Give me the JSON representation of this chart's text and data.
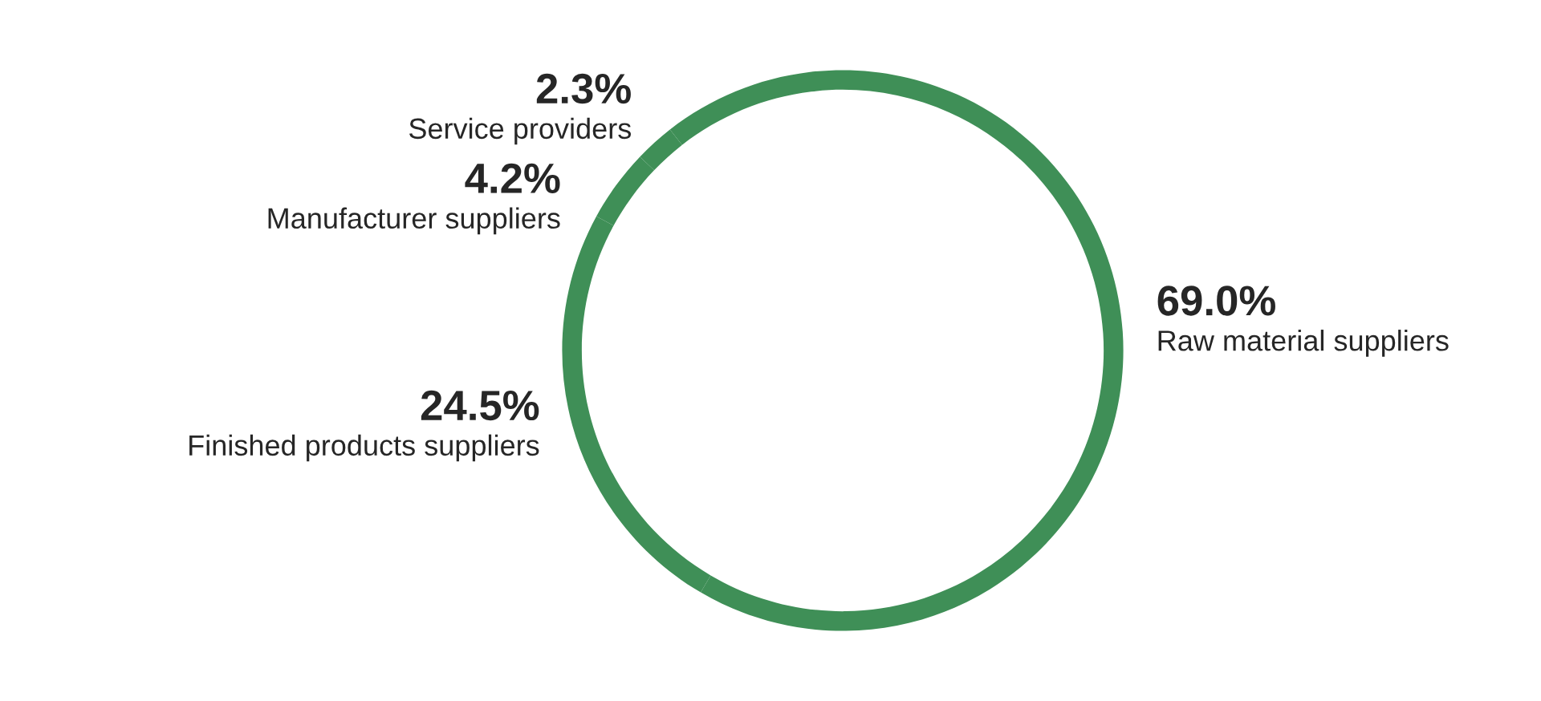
{
  "chart_data": {
    "type": "donut",
    "categories": [
      "Raw material suppliers",
      "Finished products suppliers",
      "Manufacturer suppliers",
      "Service providers"
    ],
    "values": [
      69.0,
      24.5,
      4.2,
      2.3
    ],
    "value_labels": [
      "69.0%",
      "24.5%",
      "4.2%",
      "2.3%"
    ],
    "colors": [
      "#3f8f57",
      "#3f8f57",
      "#3f8f57",
      "#3f8f57"
    ],
    "legend": false
  }
}
